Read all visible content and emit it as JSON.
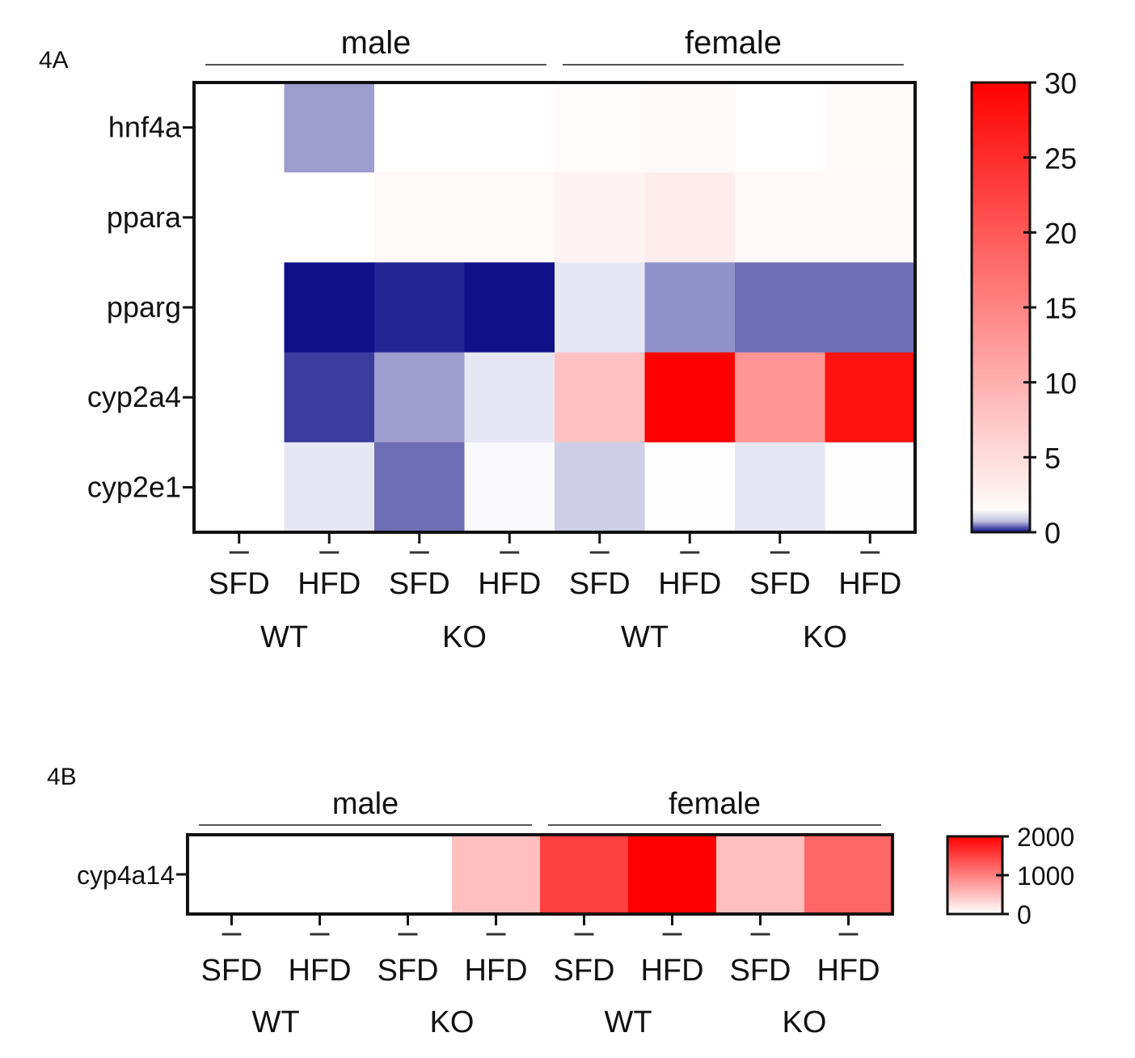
{
  "chart_data": [
    {
      "id": "4A",
      "type": "heatmap",
      "panel_label": "4A",
      "groups": [
        {
          "label": "male",
          "span": [
            0,
            3
          ]
        },
        {
          "label": "female",
          "span": [
            4,
            7
          ]
        }
      ],
      "conditions": [
        "SFD",
        "HFD",
        "SFD",
        "HFD",
        "SFD",
        "HFD",
        "SFD",
        "HFD"
      ],
      "genotypes": [
        {
          "label": "WT",
          "span": [
            0,
            1
          ]
        },
        {
          "label": "KO",
          "span": [
            2,
            3
          ]
        },
        {
          "label": "WT",
          "span": [
            4,
            5
          ]
        },
        {
          "label": "KO",
          "span": [
            6,
            7
          ]
        }
      ],
      "rows": [
        "hnf4a",
        "ppara",
        "pparg",
        "cyp2a4",
        "cyp2e1"
      ],
      "values": [
        [
          1.0,
          0.6,
          1.0,
          1.0,
          1.5,
          1.7,
          1.0,
          1.6
        ],
        [
          1.0,
          1.0,
          1.6,
          1.6,
          2.2,
          3.0,
          1.7,
          1.7
        ],
        [
          1.0,
          0.02,
          0.1,
          0.02,
          0.9,
          0.55,
          0.4,
          0.4
        ],
        [
          1.0,
          0.2,
          0.6,
          0.9,
          8.0,
          30.0,
          13.0,
          28.0
        ],
        [
          1.0,
          0.9,
          0.4,
          0.98,
          0.8,
          1.1,
          0.9,
          1.1
        ]
      ],
      "colorbar": {
        "min": 0,
        "max": 30,
        "ticks": [
          "0",
          "5",
          "10",
          "15",
          "20",
          "25",
          "30"
        ]
      },
      "colors": {
        "low": "#0b0b86",
        "mid": "#ffffff",
        "high": "#ff0000"
      }
    },
    {
      "id": "4B",
      "type": "heatmap",
      "panel_label": "4B",
      "groups": [
        {
          "label": "male",
          "span": [
            0,
            3
          ]
        },
        {
          "label": "female",
          "span": [
            4,
            7
          ]
        }
      ],
      "conditions": [
        "SFD",
        "HFD",
        "SFD",
        "HFD",
        "SFD",
        "HFD",
        "SFD",
        "HFD"
      ],
      "genotypes": [
        {
          "label": "WT",
          "span": [
            0,
            1
          ]
        },
        {
          "label": "KO",
          "span": [
            2,
            3
          ]
        },
        {
          "label": "WT",
          "span": [
            4,
            5
          ]
        },
        {
          "label": "KO",
          "span": [
            6,
            7
          ]
        }
      ],
      "rows": [
        "cyp4a14"
      ],
      "values": [
        [
          1,
          1,
          1,
          500,
          1500,
          2000,
          500,
          1200
        ]
      ],
      "colorbar": {
        "min": 0,
        "max": 2000,
        "ticks": [
          "0",
          "1000",
          "2000"
        ]
      },
      "colors": {
        "low": "#ffffff",
        "high": "#ff0000"
      }
    }
  ]
}
